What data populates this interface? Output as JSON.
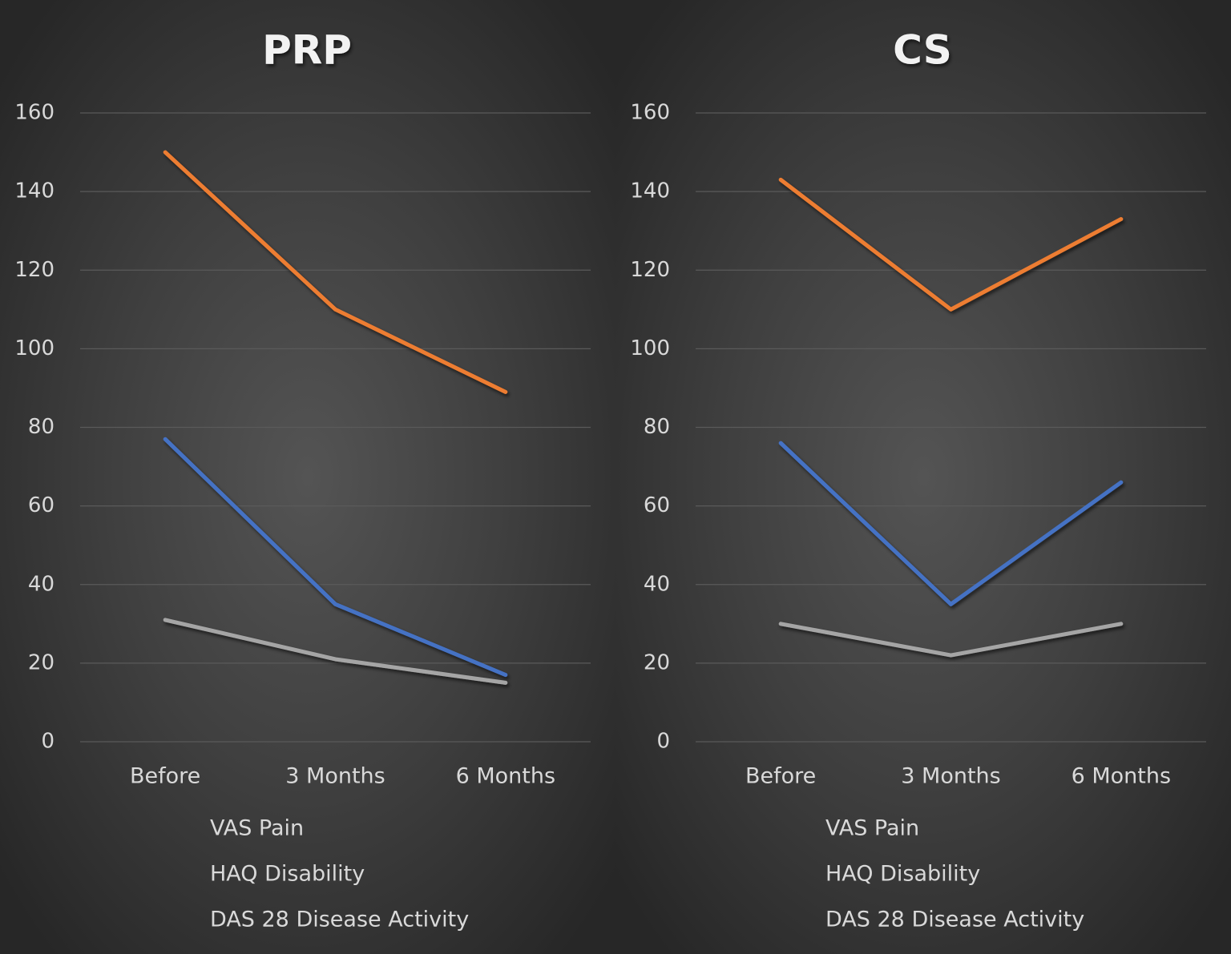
{
  "chart_data": [
    {
      "type": "line",
      "title": "PRP",
      "categories": [
        "Before",
        "3 Months",
        "6 Months"
      ],
      "series": [
        {
          "name": "VAS Pain",
          "color": "#4472c4",
          "values": [
            77,
            35,
            17
          ]
        },
        {
          "name": "HAQ Disability",
          "color": "#ed7d31",
          "values": [
            150,
            110,
            89
          ]
        },
        {
          "name": "DAS 28 Disease Activity",
          "color": "#a5a5a5",
          "values": [
            31,
            21,
            15
          ]
        }
      ],
      "ylim": [
        0,
        160
      ],
      "yticks": [
        0,
        20,
        40,
        60,
        80,
        100,
        120,
        140,
        160
      ],
      "grid": true,
      "legend": "bottom"
    },
    {
      "type": "line",
      "title": "CS",
      "categories": [
        "Before",
        "3 Months",
        "6 Months"
      ],
      "series": [
        {
          "name": "VAS Pain",
          "color": "#4472c4",
          "values": [
            76,
            35,
            66
          ]
        },
        {
          "name": "HAQ Disability",
          "color": "#ed7d31",
          "values": [
            143,
            110,
            133
          ]
        },
        {
          "name": "DAS 28 Disease Activity",
          "color": "#a5a5a5",
          "values": [
            30,
            22,
            30
          ]
        }
      ],
      "ylim": [
        0,
        160
      ],
      "yticks": [
        0,
        20,
        40,
        60,
        80,
        100,
        120,
        140,
        160
      ],
      "grid": true,
      "legend": "bottom"
    }
  ]
}
